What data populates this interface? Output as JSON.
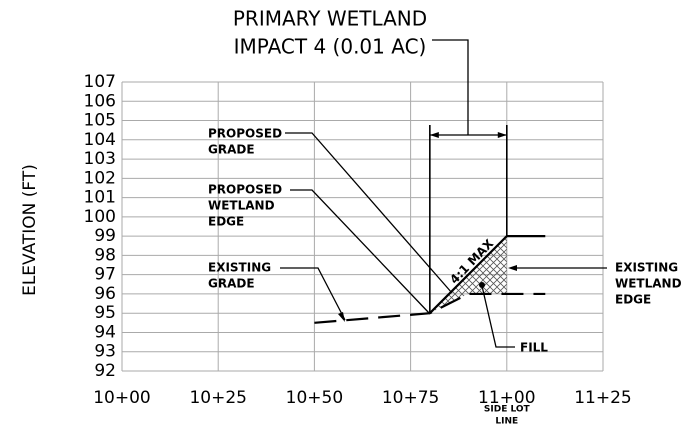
{
  "chart_data": {
    "type": "line",
    "title": [
      "PRIMARY WETLAND",
      "IMPACT 4 (0.01 AC)"
    ],
    "y_label": "ELEVATION (FT)",
    "xlim": [
      1000,
      1125
    ],
    "xticks": [
      {
        "value": 1000,
        "label": "10+00"
      },
      {
        "value": 1025,
        "label": "10+25"
      },
      {
        "value": 1050,
        "label": "10+50"
      },
      {
        "value": 1075,
        "label": "10+75"
      },
      {
        "value": 1100,
        "label": "11+00"
      },
      {
        "value": 1125,
        "label": "11+25"
      }
    ],
    "ylim": [
      92,
      107
    ],
    "yticks": [
      92,
      93,
      94,
      95,
      96,
      97,
      98,
      99,
      100,
      101,
      102,
      103,
      104,
      105,
      106,
      107
    ],
    "grid": true,
    "series": [
      {
        "color": "#000000",
        "dashed": false,
        "x": [
          1080,
          1100,
          1110
        ],
        "values": [
          95,
          99,
          99
        ]
      },
      {
        "color": "#000000",
        "dashed": true,
        "x": [
          1050,
          1080,
          1090,
          1110
        ],
        "values": [
          94.5,
          95,
          96,
          96
        ]
      }
    ],
    "annotations": {
      "proposed_grade": [
        "PROPOSED",
        "GRADE"
      ],
      "proposed_wetland_edge": [
        "PROPOSED",
        "WETLAND",
        "EDGE"
      ],
      "existing_grade": [
        "EXISTING",
        "GRADE"
      ],
      "existing_wetland_edge": [
        "EXISTING",
        "WETLAND",
        "EDGE"
      ],
      "fill": "FILL",
      "slope": "4:1 MAX",
      "side_lot_line": [
        "SIDE LOT",
        "LINE"
      ]
    }
  }
}
